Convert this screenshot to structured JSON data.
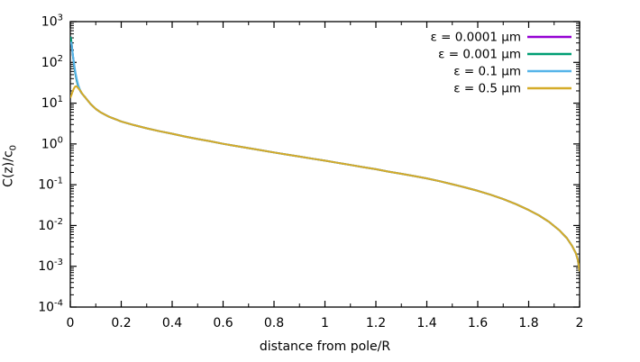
{
  "figure": {
    "background": "#ffffff",
    "axis_color": "#000000",
    "text_color": "#000000"
  },
  "chart_data": {
    "type": "line",
    "title": "",
    "xlabel": "distance from pole/R",
    "ylabel_main": "C(z)/c",
    "ylabel_sub": "0",
    "y_scale": "log",
    "x_range": [
      0,
      2
    ],
    "y_exponent_range": [
      -4,
      3
    ],
    "grid": false,
    "legend_position": "top-right-inside",
    "x_major_ticks": [
      {
        "value": 0,
        "label": "0"
      },
      {
        "value": 0.2,
        "label": "0.2"
      },
      {
        "value": 0.4,
        "label": "0.4"
      },
      {
        "value": 0.6,
        "label": "0.6"
      },
      {
        "value": 0.8,
        "label": "0.8"
      },
      {
        "value": 1,
        "label": "1"
      },
      {
        "value": 1.2,
        "label": "1.2"
      },
      {
        "value": 1.4,
        "label": "1.4"
      },
      {
        "value": 1.6,
        "label": "1.6"
      },
      {
        "value": 1.8,
        "label": "1.8"
      },
      {
        "value": 2,
        "label": "2"
      }
    ],
    "x_minor_step": 0.1,
    "y_major_exponents": [
      3,
      2,
      1,
      0,
      -1,
      -2,
      -3,
      -4
    ],
    "y_minor_mantissas": [
      2,
      3,
      4,
      5,
      6,
      7,
      8,
      9
    ],
    "series": [
      {
        "name": "ε = 0.0001 μm",
        "color": "#9400d3",
        "points": [
          [
            0.0008,
            430
          ],
          [
            0.002,
            400
          ],
          [
            0.004,
            330
          ],
          [
            0.006,
            255
          ],
          [
            0.008,
            195
          ],
          [
            0.01,
            150
          ],
          [
            0.013,
            105
          ],
          [
            0.016,
            76
          ],
          [
            0.02,
            52
          ],
          [
            0.025,
            36
          ],
          [
            0.03,
            27.5
          ],
          [
            0.035,
            22.5
          ],
          [
            0.04,
            19.5
          ],
          [
            0.045,
            17.5
          ]
        ]
      },
      {
        "name": "ε = 0.001 μm",
        "color": "#009e73",
        "points": [
          [
            0.0008,
            430
          ],
          [
            0.002,
            400
          ],
          [
            0.004,
            330
          ],
          [
            0.006,
            255
          ],
          [
            0.008,
            195
          ],
          [
            0.01,
            150
          ],
          [
            0.013,
            105
          ],
          [
            0.016,
            76
          ],
          [
            0.02,
            52
          ],
          [
            0.025,
            36
          ],
          [
            0.03,
            27.5
          ],
          [
            0.035,
            22.5
          ],
          [
            0.04,
            19.5
          ],
          [
            0.045,
            17.5
          ]
        ]
      },
      {
        "name": "ε = 0.1 μm",
        "color": "#56b4e9",
        "points": [
          [
            0.003,
            320
          ],
          [
            0.005,
            270
          ],
          [
            0.007,
            215
          ],
          [
            0.01,
            155
          ],
          [
            0.013,
            110
          ],
          [
            0.017,
            76
          ],
          [
            0.021,
            54
          ],
          [
            0.026,
            38
          ],
          [
            0.032,
            27
          ],
          [
            0.038,
            21.5
          ],
          [
            0.044,
            18.2
          ]
        ]
      },
      {
        "name": "ε = 0.5 μm",
        "color": "#d5ab28",
        "points": [
          [
            0,
            13.5
          ],
          [
            0.004,
            15.5
          ],
          [
            0.008,
            18.5
          ],
          [
            0.012,
            21.5
          ],
          [
            0.016,
            24
          ],
          [
            0.02,
            25.8
          ],
          [
            0.024,
            25.9
          ],
          [
            0.028,
            24.5
          ],
          [
            0.033,
            22.5
          ],
          [
            0.04,
            20
          ],
          [
            0.045,
            17.8
          ]
        ]
      }
    ],
    "common_tail_points": [
      [
        0.05,
        16
      ],
      [
        0.06,
        13.5
      ],
      [
        0.08,
        9.5
      ],
      [
        0.1,
        7.2
      ],
      [
        0.12,
        5.9
      ],
      [
        0.15,
        4.7
      ],
      [
        0.2,
        3.55
      ],
      [
        0.25,
        2.9
      ],
      [
        0.3,
        2.42
      ],
      [
        0.35,
        2.05
      ],
      [
        0.4,
        1.78
      ],
      [
        0.45,
        1.52
      ],
      [
        0.5,
        1.32
      ],
      [
        0.55,
        1.16
      ],
      [
        0.6,
        1.01
      ],
      [
        0.65,
        0.89
      ],
      [
        0.7,
        0.79
      ],
      [
        0.75,
        0.7
      ],
      [
        0.8,
        0.62
      ],
      [
        0.85,
        0.55
      ],
      [
        0.9,
        0.49
      ],
      [
        0.95,
        0.435
      ],
      [
        1.0,
        0.39
      ],
      [
        1.05,
        0.345
      ],
      [
        1.1,
        0.305
      ],
      [
        1.15,
        0.27
      ],
      [
        1.2,
        0.24
      ],
      [
        1.25,
        0.21
      ],
      [
        1.3,
        0.185
      ],
      [
        1.35,
        0.163
      ],
      [
        1.4,
        0.143
      ],
      [
        1.45,
        0.122
      ],
      [
        1.5,
        0.103
      ],
      [
        1.55,
        0.086
      ],
      [
        1.6,
        0.071
      ],
      [
        1.65,
        0.057
      ],
      [
        1.7,
        0.0445
      ],
      [
        1.75,
        0.0335
      ],
      [
        1.8,
        0.024
      ],
      [
        1.84,
        0.0178
      ],
      [
        1.88,
        0.0123
      ],
      [
        1.92,
        0.0077
      ],
      [
        1.95,
        0.0049
      ],
      [
        1.97,
        0.0032
      ],
      [
        1.985,
        0.0021
      ],
      [
        1.993,
        0.00145
      ],
      [
        1.998,
        0.0009
      ],
      [
        2.0,
        0.00075
      ]
    ]
  },
  "layout_note": "gnuplot-style line chart, no title, mirrored inward ticks"
}
